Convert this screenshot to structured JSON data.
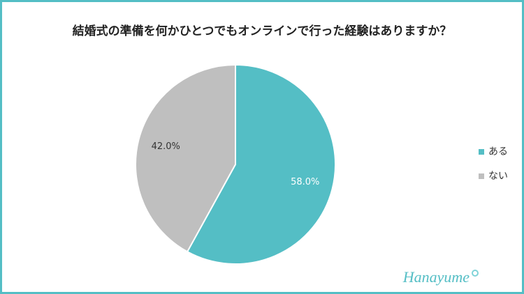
{
  "chart_data": {
    "type": "pie",
    "title": "結婚式の準備を何かひとつでもオンラインで行った経験はありますか？",
    "categories": [
      "ある",
      "ない"
    ],
    "values": [
      58.0,
      42.0
    ],
    "value_labels": [
      "58.0%",
      "42.0%"
    ],
    "colors": [
      "#54bec5",
      "#bfbfbf"
    ],
    "legend": "right"
  },
  "logo": "Hanayume"
}
